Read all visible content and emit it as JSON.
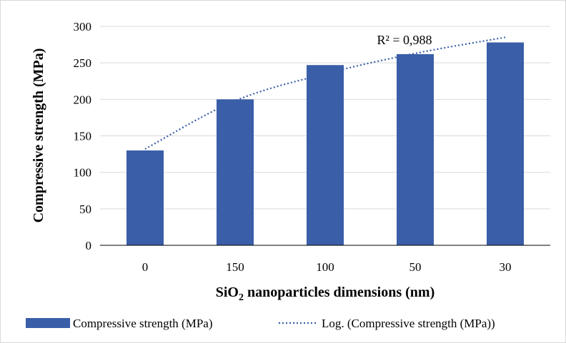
{
  "chart_data": {
    "type": "bar",
    "categories": [
      "0",
      "150",
      "100",
      "50",
      "30"
    ],
    "series": [
      {
        "name": "Compressive strength (MPa)",
        "values": [
          130,
          200,
          247,
          262,
          278
        ],
        "color": "#3a5ea8"
      }
    ],
    "trendline": {
      "name": "Log. (Compressive strength (MPa))",
      "type": "logarithmic",
      "values": [
        132,
        198,
        235,
        263,
        285
      ],
      "color": "#3a5ea8",
      "style": "dotted",
      "annotation": "R² = 0,988"
    },
    "xlabel_main": "SiO",
    "xlabel_sub": "2",
    "xlabel_rest": " nanoparticles dimensions (nm)",
    "ylabel": "Compressive strength (MPa)",
    "ylim": [
      0,
      300
    ],
    "yticks": [
      "0",
      "50",
      "100",
      "150",
      "200",
      "250",
      "300"
    ],
    "ytick_values": [
      0,
      50,
      100,
      150,
      200,
      250,
      300
    ],
    "grid": true,
    "legend_position": "bottom"
  }
}
